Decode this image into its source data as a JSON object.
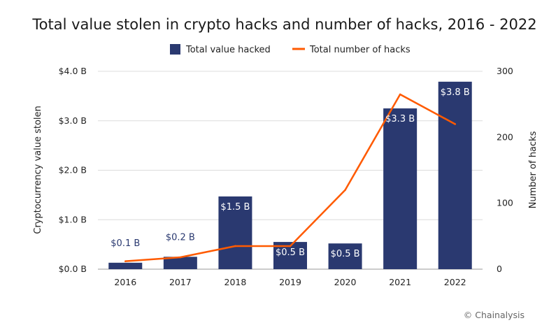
{
  "chart_data": {
    "type": "bar",
    "title": "Total value stolen in crypto hacks and number of hacks, 2016 - 2022",
    "categories": [
      "2016",
      "2017",
      "2018",
      "2019",
      "2020",
      "2021",
      "2022"
    ],
    "series": [
      {
        "name": "Total value hacked",
        "type": "bar",
        "axis": "left",
        "color": "#2a3970",
        "values": [
          0.13,
          0.25,
          1.47,
          0.55,
          0.52,
          3.25,
          3.79
        ],
        "labels": [
          "$0.1 B",
          "$0.2 B",
          "$1.5 B",
          "$0.5 B",
          "$0.5 B",
          "$3.3 B",
          "$3.8 B"
        ]
      },
      {
        "name": "Total number of hacks",
        "type": "line",
        "axis": "right",
        "color": "#ff5a00",
        "values": [
          12,
          18,
          35,
          35,
          120,
          265,
          220
        ]
      }
    ],
    "ylabel": "Cryptocurrency value stolen",
    "ylabel_right": "Number of hacks",
    "ylim": [
      0,
      4
    ],
    "ylim_right": [
      0,
      300
    ],
    "yticks": [
      "$0.0 B",
      "$1.0 B",
      "$2.0 B",
      "$3.0 B",
      "$4.0 B"
    ],
    "yticks_right": [
      "0",
      "100",
      "200",
      "300"
    ],
    "legend_position": "top-center",
    "grid": true
  },
  "credit": "© Chainalysis"
}
